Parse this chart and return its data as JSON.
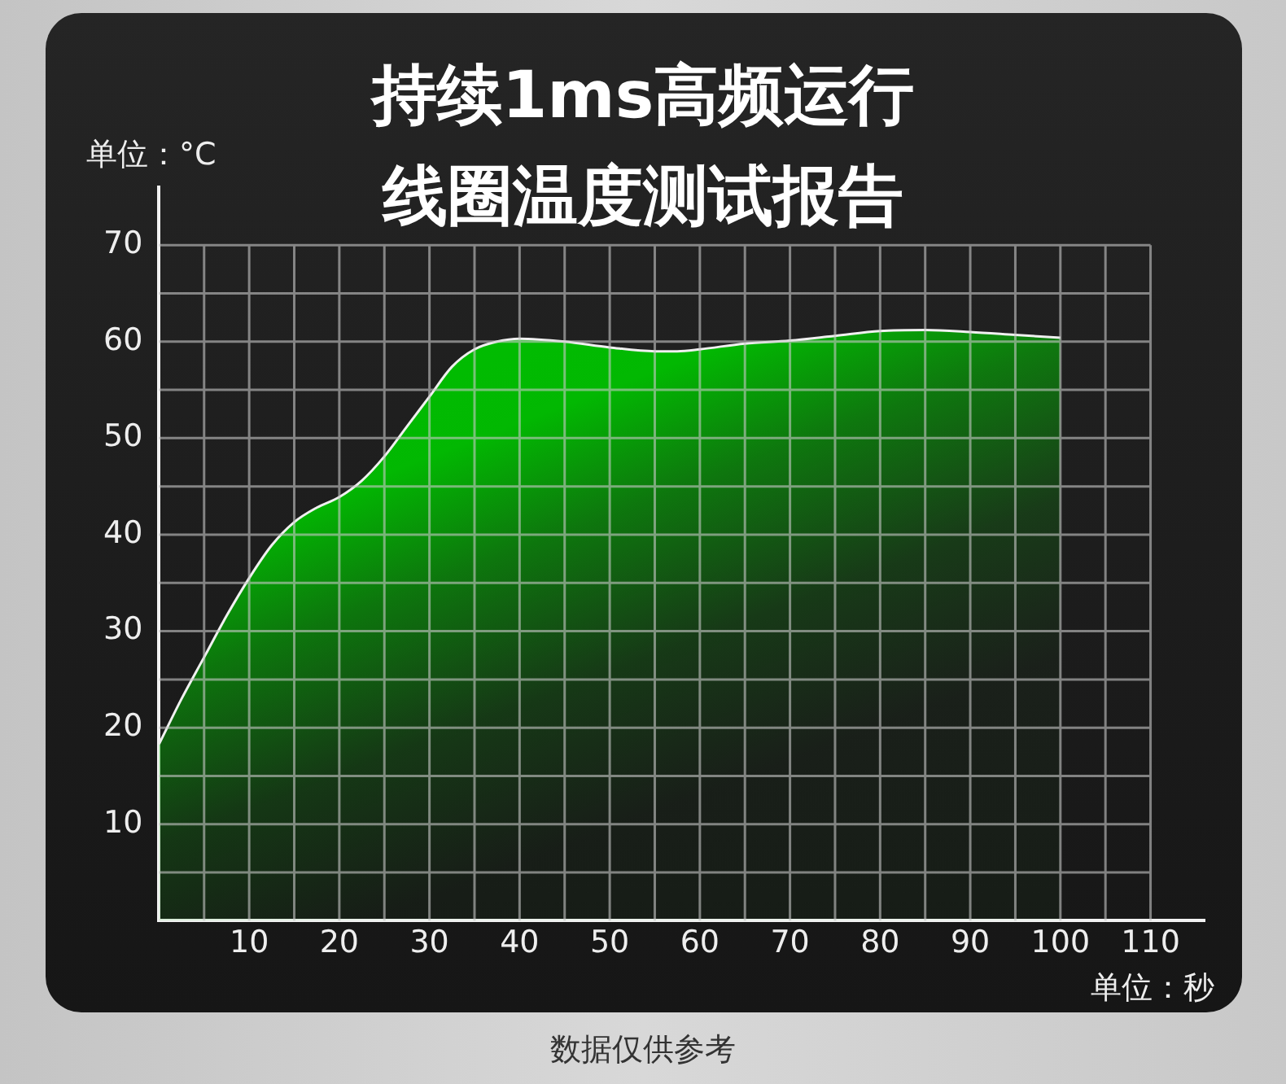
{
  "chart_data": {
    "type": "area",
    "title": "持续1ms高频运行线圈温度测试报告",
    "xlabel": "单位：秒",
    "ylabel": "单位：°C",
    "annotations": [
      "数据仅供参考"
    ],
    "x": [
      0,
      2.5,
      5,
      7.5,
      10,
      12.5,
      15,
      17.5,
      20,
      22.5,
      25,
      27.5,
      30,
      32.5,
      35,
      37.5,
      40,
      45,
      50,
      55,
      57.5,
      60,
      65,
      70,
      75,
      80,
      85,
      90,
      95,
      100
    ],
    "values": [
      18.3,
      23,
      27.3,
      31.6,
      35.5,
      38.9,
      41.3,
      42.8,
      43.9,
      45.6,
      48.1,
      51.2,
      54.3,
      57.4,
      59.2,
      60,
      60.3,
      60,
      59.4,
      59,
      59,
      59.2,
      59.8,
      60.1,
      60.6,
      61.1,
      61.2,
      61,
      60.7,
      60.4
    ],
    "color": "#00c000",
    "xlim": [
      0,
      116
    ],
    "ylim": [
      0,
      76
    ],
    "xticks": [
      {
        "value": 5,
        "label": null
      },
      10,
      {
        "value": 15,
        "label": null
      },
      20,
      {
        "value": 25,
        "label": null
      },
      30,
      {
        "value": 35,
        "label": null
      },
      40,
      {
        "value": 45,
        "label": null
      },
      50,
      {
        "value": 55,
        "label": null
      },
      60,
      {
        "value": 65,
        "label": null
      },
      70,
      {
        "value": 75,
        "label": null
      },
      80,
      {
        "value": 85,
        "label": null
      },
      90,
      {
        "value": 95,
        "label": null
      },
      100,
      {
        "value": 105,
        "label": null
      },
      110
    ],
    "yticks": [
      {
        "value": 5,
        "label": null
      },
      10,
      {
        "value": 15,
        "label": null
      },
      20,
      {
        "value": 25,
        "label": null
      },
      30,
      {
        "value": 35,
        "label": null
      },
      40,
      {
        "value": 45,
        "label": null
      },
      50,
      {
        "value": 55,
        "label": null
      },
      60,
      {
        "value": 65,
        "label": null
      },
      70
    ],
    "grid": true
  }
}
